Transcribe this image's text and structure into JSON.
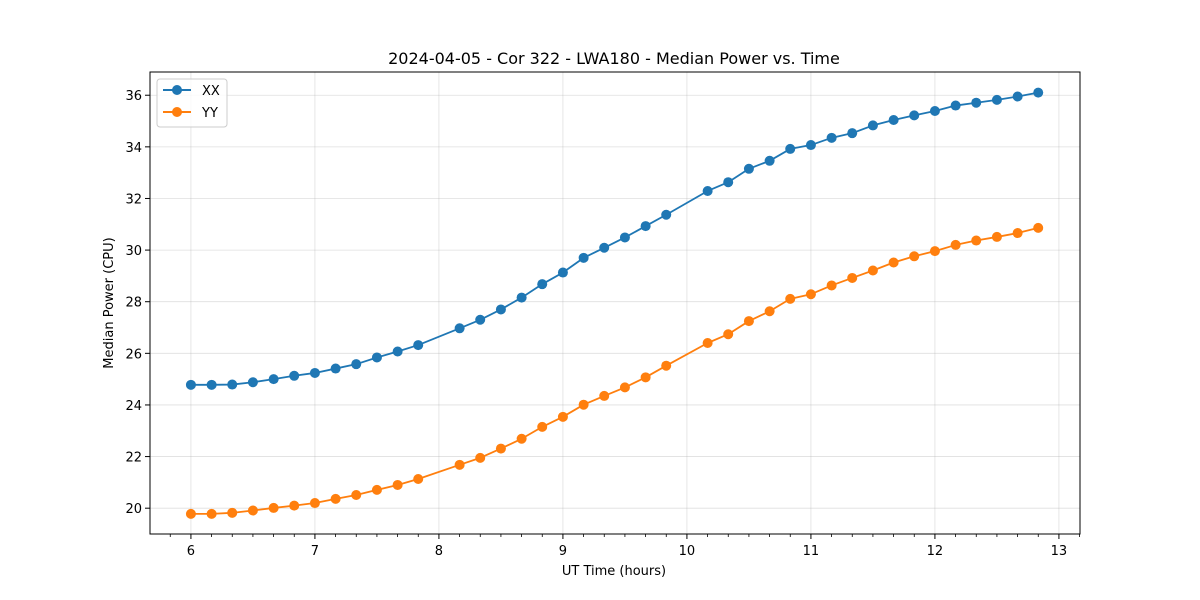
{
  "chart_data": {
    "type": "line",
    "title": "2024-04-05 - Cor 322 - LWA180 - Median Power vs. Time",
    "xlabel": "UT Time (hours)",
    "ylabel": "Median Power (CPU)",
    "xlim": [
      5.67,
      13.17
    ],
    "ylim": [
      19.0,
      36.9
    ],
    "xticks": [
      6,
      7,
      8,
      9,
      10,
      11,
      12,
      13
    ],
    "yticks": [
      20,
      22,
      24,
      26,
      28,
      30,
      32,
      34,
      36
    ],
    "grid": true,
    "legend_position": "upper-left",
    "x": [
      6.0,
      6.167,
      6.333,
      6.5,
      6.667,
      6.833,
      7.0,
      7.167,
      7.333,
      7.5,
      7.667,
      7.833,
      8.167,
      8.333,
      8.5,
      8.667,
      8.833,
      9.0,
      9.167,
      9.333,
      9.5,
      9.667,
      9.833,
      10.167,
      10.333,
      10.5,
      10.667,
      10.833,
      11.0,
      11.167,
      11.333,
      11.5,
      11.667,
      11.833,
      12.0,
      12.167,
      12.333,
      12.5,
      12.667,
      12.833
    ],
    "series": [
      {
        "name": "XX",
        "color": "#1f77b4",
        "values": [
          24.78,
          24.78,
          24.79,
          24.88,
          25.0,
          25.13,
          25.24,
          25.41,
          25.58,
          25.84,
          26.07,
          26.32,
          26.97,
          27.3,
          27.7,
          28.16,
          28.68,
          29.13,
          29.7,
          30.09,
          30.49,
          30.93,
          31.37,
          32.29,
          32.63,
          33.15,
          33.46,
          33.92,
          34.07,
          34.35,
          34.53,
          34.83,
          35.04,
          35.22,
          35.39,
          35.6,
          35.71,
          35.82,
          35.95,
          36.1
        ]
      },
      {
        "name": "YY",
        "color": "#ff7f0e",
        "values": [
          19.78,
          19.78,
          19.82,
          19.91,
          20.01,
          20.1,
          20.2,
          20.36,
          20.51,
          20.71,
          20.9,
          21.13,
          21.68,
          21.95,
          22.31,
          22.69,
          23.15,
          23.54,
          24.01,
          24.35,
          24.68,
          25.07,
          25.52,
          26.4,
          26.74,
          27.25,
          27.63,
          28.11,
          28.29,
          28.63,
          28.92,
          29.21,
          29.52,
          29.76,
          29.96,
          30.2,
          30.37,
          30.51,
          30.66,
          30.86
        ]
      }
    ]
  }
}
